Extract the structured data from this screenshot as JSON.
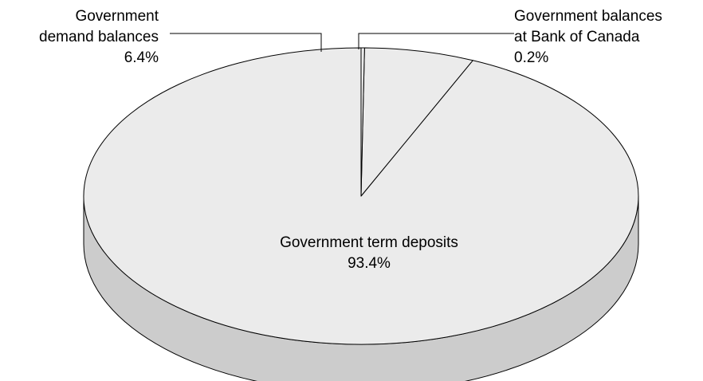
{
  "chart_data": {
    "type": "pie",
    "title": "",
    "style": "3d",
    "slices": [
      {
        "name": "Government term deposits",
        "value": 93.4,
        "label": "93.4%"
      },
      {
        "name": "Government demand balances",
        "value": 6.4,
        "label": "6.4%"
      },
      {
        "name": "Government balances at Bank of Canada",
        "value": 0.2,
        "label": "0.2%"
      }
    ],
    "labels": {
      "term_deposits": {
        "line1": "Government term deposits",
        "value": "93.4%"
      },
      "demand_balances": {
        "line1": "Government",
        "line2": "demand balances",
        "value": "6.4%"
      },
      "bank_of_canada": {
        "line1": "Government balances",
        "line2": "at Bank of Canada",
        "value": "0.2%"
      }
    },
    "colors": {
      "top": "#ebebeb",
      "side": "#cccccc",
      "stroke": "#000000"
    }
  }
}
